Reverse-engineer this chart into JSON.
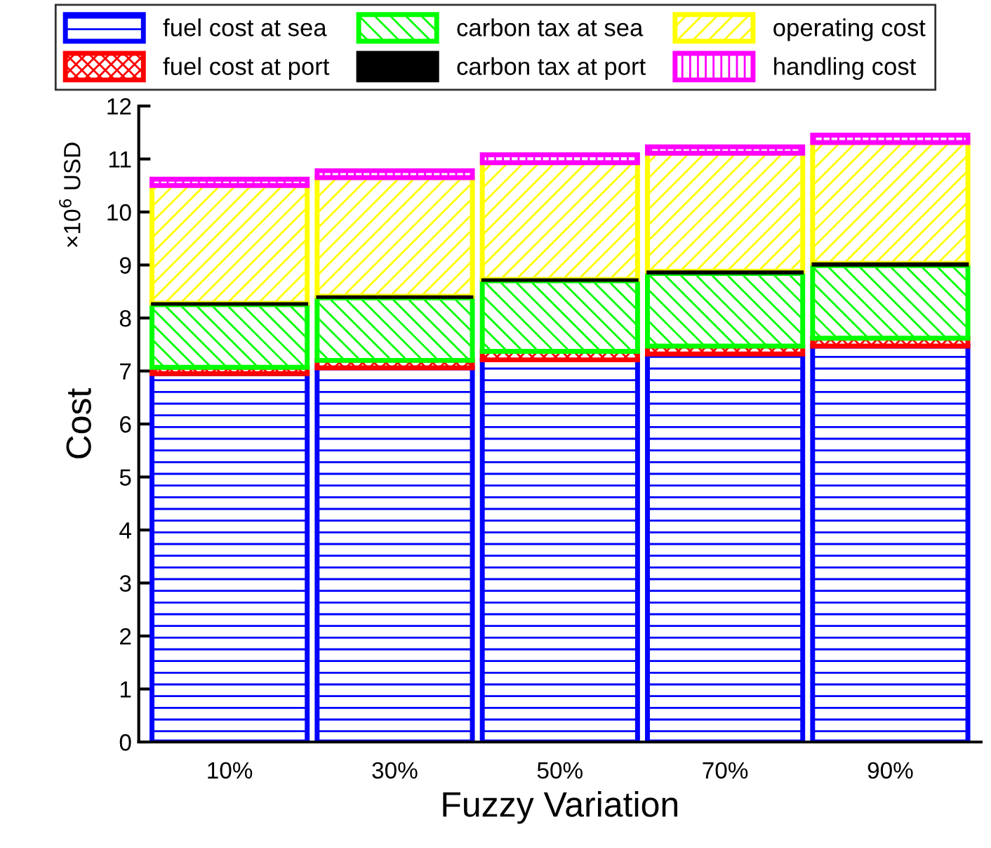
{
  "chart_data": {
    "type": "bar",
    "stacked": true,
    "xlabel": "Fuzzy Variation",
    "ylabel": "Cost",
    "annotations": [
      "×10$^{6}$ USD"
    ],
    "categories": [
      "10%",
      "30%",
      "50%",
      "70%",
      "90%"
    ],
    "series": [
      {
        "name": "fuel cost at sea",
        "color": "#0000ff",
        "values": [
          6.95,
          7.06,
          7.21,
          7.32,
          7.47
        ]
      },
      {
        "name": "fuel cost at port",
        "color": "#ff0000",
        "values": [
          0.12,
          0.14,
          0.16,
          0.15,
          0.15
        ]
      },
      {
        "name": "carbon tax at sea",
        "color": "#00ff00",
        "values": [
          1.18,
          1.18,
          1.33,
          1.37,
          1.37
        ]
      },
      {
        "name": "carbon tax at port",
        "color": "#000000",
        "values": [
          0.03,
          0.03,
          0.03,
          0.04,
          0.04
        ]
      },
      {
        "name": "operating cost",
        "color": "#ffff00",
        "values": [
          2.22,
          2.24,
          2.2,
          2.23,
          2.28
        ]
      },
      {
        "name": "handling cost",
        "color": "#ff00ff",
        "values": [
          0.12,
          0.13,
          0.15,
          0.12,
          0.14
        ]
      }
    ],
    "ylim": [
      0,
      12
    ],
    "yticks": [
      0,
      1,
      2,
      3,
      4,
      5,
      6,
      7,
      8,
      9,
      10,
      11,
      12
    ],
    "grid": false,
    "legend": "top"
  }
}
